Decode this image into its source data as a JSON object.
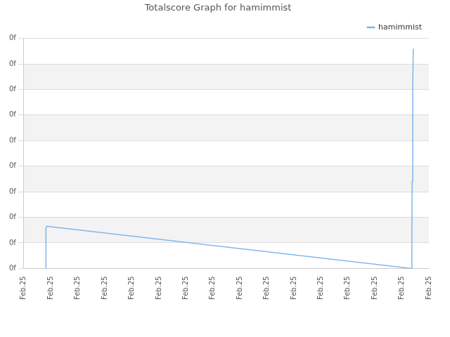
{
  "chart_data": {
    "type": "line",
    "title": "Totalscore Graph for hamimmist",
    "series": [
      {
        "name": "hamimmist",
        "color": "#7cb5ec",
        "x": [
          0.82,
          0.82,
          0.85,
          14.37,
          14.37,
          14.38,
          14.4,
          14.42
        ],
        "values": [
          0,
          1.6,
          1.65,
          0,
          1.6,
          3.4,
          6.9,
          8.6
        ]
      }
    ],
    "xlim": [
      0,
      15
    ],
    "xticks": [
      {
        "value": 0,
        "label": "Feb.25"
      },
      {
        "value": 1,
        "label": "Feb.25"
      },
      {
        "value": 2,
        "label": "Feb.25"
      },
      {
        "value": 3,
        "label": "Feb.25"
      },
      {
        "value": 4,
        "label": "Feb.25"
      },
      {
        "value": 5,
        "label": "Feb.25"
      },
      {
        "value": 6,
        "label": "Feb.25"
      },
      {
        "value": 7,
        "label": "Feb.25"
      },
      {
        "value": 8,
        "label": "Feb.25"
      },
      {
        "value": 9,
        "label": "Feb.25"
      },
      {
        "value": 10,
        "label": "Feb.25"
      },
      {
        "value": 11,
        "label": "Feb.25"
      },
      {
        "value": 12,
        "label": "Feb.25"
      },
      {
        "value": 13,
        "label": "Feb.25"
      },
      {
        "value": 14,
        "label": "Feb.25"
      },
      {
        "value": 15,
        "label": "Feb.25"
      }
    ],
    "ylim": [
      0,
      9
    ],
    "yticks": [
      {
        "value": 0,
        "label": "0f"
      },
      {
        "value": 1,
        "label": "0f"
      },
      {
        "value": 2,
        "label": "0f"
      },
      {
        "value": 3,
        "label": "0f"
      },
      {
        "value": 4,
        "label": "0f"
      },
      {
        "value": 5,
        "label": "0f"
      },
      {
        "value": 6,
        "label": "0f"
      },
      {
        "value": 7,
        "label": "0f"
      },
      {
        "value": 8,
        "label": "0f"
      },
      {
        "value": 9,
        "label": "0f"
      }
    ],
    "grid": true,
    "legend": "top-right"
  }
}
